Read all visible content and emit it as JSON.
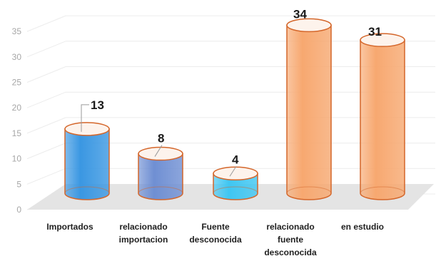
{
  "chart_data": {
    "type": "bar",
    "style": "3d-cylinder",
    "categories": [
      [
        "Importados"
      ],
      [
        "relacionado",
        "importacion"
      ],
      [
        "Fuente",
        "desconocida"
      ],
      [
        "relacionado",
        "fuente",
        "desconocida"
      ],
      [
        "en estudio"
      ]
    ],
    "values": [
      13,
      8,
      4,
      34,
      31
    ],
    "data_labels": [
      "13",
      "8",
      "4",
      "34",
      "31"
    ],
    "colors": [
      "#3a97e2",
      "#6f8fd3",
      "#3fc6f2",
      "#f7a870",
      "#f7a870"
    ],
    "edge_colors": [
      "#d4662a",
      "#d4662a",
      "#d4662a",
      "#d4662a",
      "#d4662a"
    ],
    "ylim": [
      0,
      35
    ],
    "yticks": [
      "0",
      "5",
      "10",
      "15",
      "20",
      "25",
      "30",
      "35"
    ],
    "grid": true,
    "legend": "none",
    "floor_color": "#e4e4e4",
    "grid_color": "#ececec",
    "axis_text_color": "#a6a6a6"
  }
}
